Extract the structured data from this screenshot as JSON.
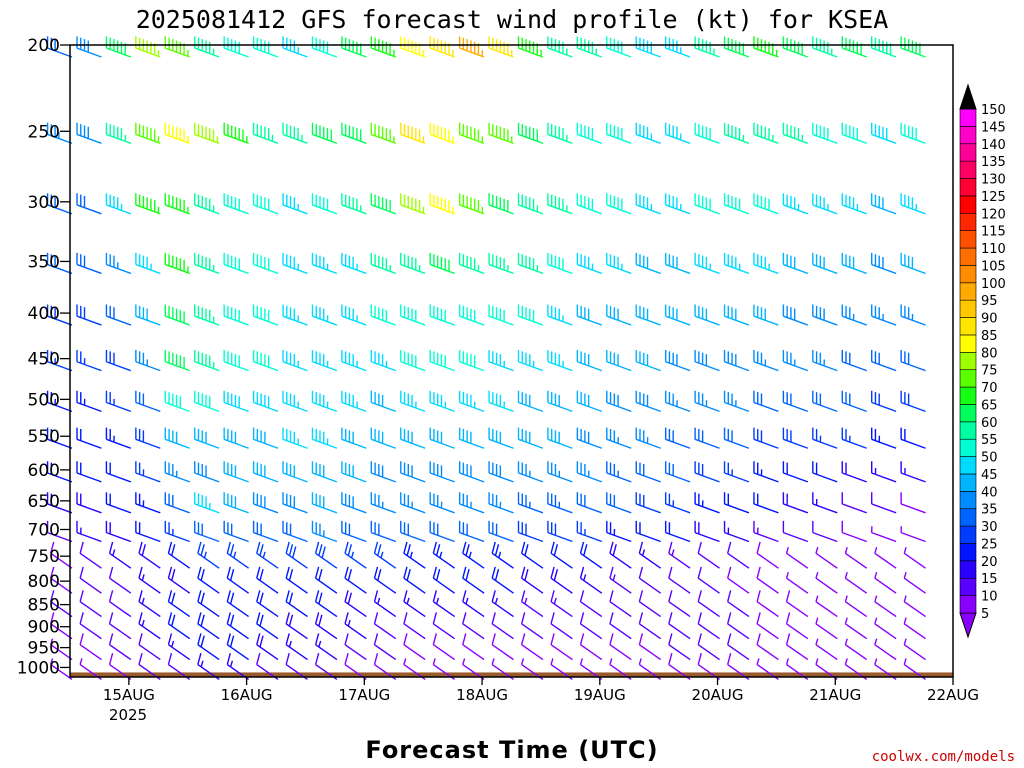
{
  "chart_data": {
    "type": "wind-barb-profile",
    "title": "2025081412 GFS forecast wind profile (kt) for KSEA",
    "xlabel": "Forecast Time (UTC)",
    "credit": "coolwx.com/models",
    "y_axis": {
      "quantity": "pressure",
      "unit": "hPa",
      "inverted": true,
      "range": [
        1025,
        200
      ],
      "ticks": [
        200,
        250,
        300,
        350,
        400,
        450,
        500,
        550,
        600,
        650,
        700,
        750,
        800,
        850,
        900,
        950,
        1000
      ]
    },
    "x_axis": {
      "range": [
        "2025-08-14T12:00Z",
        "2025-08-22T00:00Z"
      ],
      "tick_labels": [
        "15AUG",
        "16AUG",
        "17AUG",
        "18AUG",
        "19AUG",
        "20AUG",
        "21AUG",
        "22AUG"
      ],
      "year_label": "2025"
    },
    "colorbar": {
      "unit": "kt",
      "levels": [
        5,
        10,
        15,
        20,
        25,
        30,
        35,
        40,
        45,
        50,
        55,
        60,
        65,
        70,
        75,
        80,
        85,
        90,
        95,
        100,
        105,
        110,
        115,
        120,
        125,
        130,
        135,
        140,
        145,
        150
      ],
      "colors": [
        "#8a00ff",
        "#5a00ff",
        "#2a00ff",
        "#0014ff",
        "#003cff",
        "#0064ff",
        "#008cff",
        "#00b4ff",
        "#00dcff",
        "#00ffd2",
        "#00ffa0",
        "#00ff5a",
        "#14ff14",
        "#5aff00",
        "#a0ff00",
        "#ffff00",
        "#ffe600",
        "#ffc800",
        "#ffaa00",
        "#ff8c00",
        "#ff6e00",
        "#ff5000",
        "#ff2800",
        "#ff0000",
        "#ff0032",
        "#ff0064",
        "#ff0096",
        "#ff00c8",
        "#ff00ff"
      ],
      "ends": "triangles"
    },
    "levels_hpa": [
      200,
      250,
      300,
      350,
      400,
      450,
      500,
      550,
      600,
      650,
      700,
      750,
      800,
      850,
      900,
      950,
      1000
    ],
    "forecast_interval_hours": 6,
    "wind_speed_kt_by_level": {
      "200": [
        32,
        38,
        60,
        75,
        70,
        55,
        50,
        50,
        45,
        50,
        60,
        65,
        80,
        85,
        95,
        85,
        65,
        55,
        55,
        50,
        48,
        45,
        55,
        60,
        65,
        60,
        55,
        60,
        58,
        62,
        60
      ],
      "250": [
        35,
        38,
        55,
        70,
        80,
        78,
        65,
        55,
        55,
        60,
        60,
        70,
        85,
        80,
        70,
        70,
        60,
        55,
        50,
        50,
        45,
        45,
        50,
        55,
        55,
        55,
        50,
        50,
        48,
        50,
        50
      ],
      "300": [
        32,
        32,
        45,
        65,
        65,
        55,
        50,
        50,
        45,
        50,
        55,
        60,
        75,
        80,
        70,
        60,
        55,
        55,
        50,
        50,
        45,
        45,
        50,
        50,
        50,
        45,
        45,
        45,
        42,
        45,
        45
      ],
      "350": [
        30,
        30,
        35,
        45,
        65,
        55,
        50,
        50,
        45,
        45,
        45,
        55,
        55,
        60,
        55,
        55,
        55,
        50,
        45,
        45,
        40,
        40,
        45,
        45,
        45,
        40,
        40,
        40,
        38,
        40,
        40
      ],
      "400": [
        28,
        28,
        30,
        40,
        60,
        55,
        50,
        50,
        45,
        45,
        45,
        50,
        50,
        50,
        50,
        50,
        50,
        45,
        42,
        42,
        40,
        40,
        40,
        40,
        40,
        38,
        38,
        36,
        35,
        36,
        35
      ],
      "450": [
        25,
        25,
        28,
        35,
        60,
        55,
        50,
        50,
        45,
        45,
        45,
        45,
        50,
        50,
        50,
        45,
        45,
        45,
        40,
        40,
        40,
        38,
        38,
        38,
        35,
        35,
        35,
        32,
        30,
        30,
        30
      ],
      "500": [
        24,
        24,
        26,
        30,
        50,
        50,
        48,
        48,
        45,
        45,
        45,
        42,
        45,
        45,
        45,
        45,
        42,
        42,
        40,
        38,
        38,
        35,
        35,
        35,
        32,
        32,
        30,
        30,
        28,
        28,
        28
      ],
      "550": [
        22,
        22,
        24,
        28,
        40,
        42,
        42,
        42,
        45,
        45,
        42,
        40,
        42,
        42,
        42,
        42,
        40,
        40,
        38,
        36,
        35,
        32,
        30,
        30,
        28,
        28,
        26,
        25,
        24,
        22,
        22
      ],
      "600": [
        20,
        20,
        22,
        25,
        35,
        38,
        40,
        40,
        40,
        42,
        40,
        38,
        38,
        38,
        38,
        38,
        36,
        36,
        35,
        33,
        32,
        30,
        28,
        26,
        24,
        22,
        20,
        18,
        16,
        15,
        14
      ],
      "650": [
        18,
        18,
        20,
        24,
        30,
        45,
        40,
        38,
        38,
        40,
        38,
        35,
        35,
        35,
        35,
        35,
        33,
        33,
        32,
        30,
        28,
        26,
        24,
        22,
        20,
        18,
        15,
        12,
        10,
        8,
        6
      ],
      "700": [
        12,
        15,
        18,
        20,
        25,
        30,
        32,
        32,
        32,
        35,
        32,
        30,
        30,
        30,
        30,
        30,
        28,
        28,
        26,
        24,
        22,
        20,
        18,
        16,
        14,
        12,
        10,
        8,
        6,
        5,
        5
      ],
      "750": [
        8,
        12,
        15,
        18,
        20,
        25,
        26,
        26,
        28,
        28,
        26,
        25,
        24,
        24,
        24,
        24,
        22,
        22,
        20,
        18,
        16,
        14,
        12,
        10,
        8,
        6,
        5,
        5,
        5,
        5,
        5
      ],
      "800": [
        8,
        10,
        12,
        15,
        18,
        20,
        22,
        22,
        22,
        22,
        20,
        20,
        20,
        20,
        20,
        20,
        18,
        18,
        16,
        14,
        12,
        10,
        10,
        8,
        8,
        6,
        6,
        5,
        5,
        5,
        5
      ],
      "850": [
        10,
        10,
        12,
        15,
        20,
        22,
        22,
        20,
        20,
        20,
        18,
        15,
        15,
        15,
        15,
        15,
        14,
        14,
        12,
        12,
        10,
        10,
        10,
        10,
        8,
        8,
        6,
        5,
        5,
        5,
        5
      ],
      "900": [
        8,
        10,
        12,
        15,
        20,
        22,
        22,
        20,
        18,
        18,
        15,
        12,
        12,
        10,
        10,
        10,
        10,
        10,
        10,
        10,
        10,
        10,
        10,
        10,
        8,
        8,
        6,
        5,
        5,
        5,
        5
      ],
      "950": [
        5,
        8,
        10,
        12,
        15,
        20,
        20,
        18,
        15,
        15,
        12,
        10,
        8,
        8,
        8,
        8,
        8,
        8,
        8,
        8,
        8,
        10,
        10,
        10,
        8,
        8,
        6,
        5,
        5,
        5,
        5
      ],
      "1000": [
        5,
        5,
        8,
        10,
        12,
        15,
        15,
        12,
        10,
        10,
        8,
        8,
        5,
        5,
        5,
        5,
        5,
        5,
        5,
        5,
        5,
        8,
        8,
        8,
        5,
        5,
        5,
        5,
        5,
        5,
        5
      ]
    },
    "grid": false,
    "legend": "colorbar-right",
    "ground_color": "#9a5a2c"
  }
}
